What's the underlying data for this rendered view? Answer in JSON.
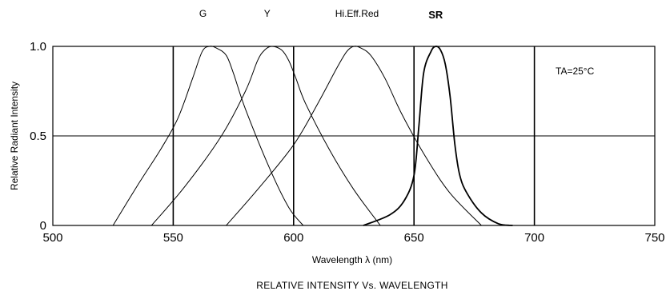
{
  "chart_data": {
    "type": "line",
    "title": "RELATIVE INTENSITY Vs. WAVELENGTH",
    "xlabel": "Wavelength  λ  (nm)",
    "ylabel": "Relative Radiant Intensity",
    "xlim": [
      500,
      750
    ],
    "ylim": [
      0,
      1.0
    ],
    "x_ticks": [
      "500",
      "550",
      "600",
      "650",
      "700",
      "750"
    ],
    "y_ticks": [
      "0",
      "0.5",
      "1.0"
    ],
    "grid": true,
    "annotation": "TA=25°C",
    "series": [
      {
        "name": "G",
        "x": [
          525,
          535,
          545,
          552,
          558,
          562,
          565,
          568,
          572,
          575,
          580,
          590,
          598,
          604
        ],
        "y": [
          0.0,
          0.22,
          0.43,
          0.6,
          0.82,
          0.97,
          1.0,
          0.99,
          0.95,
          0.85,
          0.65,
          0.32,
          0.1,
          0.0
        ]
      },
      {
        "name": "Y",
        "x": [
          541,
          555,
          570,
          580,
          585,
          588,
          591,
          595,
          598,
          601,
          605,
          615,
          625,
          636
        ],
        "y": [
          0.0,
          0.22,
          0.5,
          0.75,
          0.92,
          0.98,
          1.0,
          0.98,
          0.92,
          0.82,
          0.68,
          0.42,
          0.2,
          0.0
        ]
      },
      {
        "name": "Hi.Eff.Red",
        "x": [
          572,
          585,
          600,
          610,
          618,
          622,
          625,
          628,
          632,
          638,
          645,
          655,
          665,
          678
        ],
        "y": [
          0.0,
          0.2,
          0.45,
          0.68,
          0.88,
          0.97,
          1.0,
          0.99,
          0.95,
          0.82,
          0.62,
          0.38,
          0.18,
          0.0
        ]
      },
      {
        "name": "SR",
        "x": [
          629,
          640,
          646,
          650,
          652,
          654,
          657,
          659,
          661,
          663,
          665,
          667,
          669,
          672,
          678,
          685,
          691
        ],
        "y": [
          0.0,
          0.06,
          0.14,
          0.28,
          0.55,
          0.85,
          0.97,
          1.0,
          0.98,
          0.9,
          0.72,
          0.45,
          0.28,
          0.18,
          0.07,
          0.01,
          0.0
        ]
      }
    ]
  }
}
